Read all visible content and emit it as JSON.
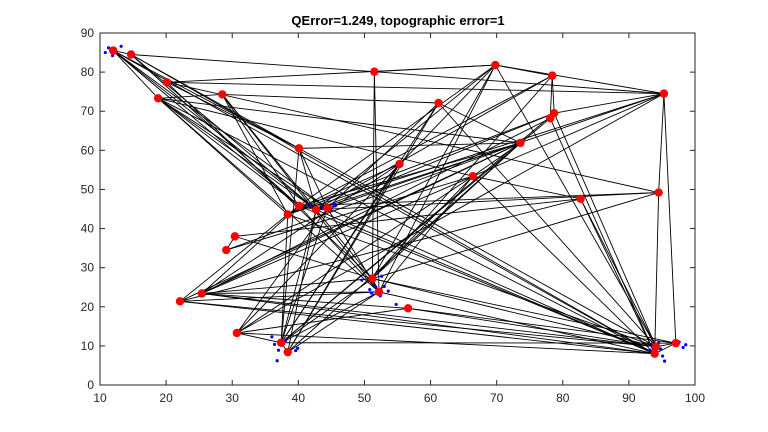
{
  "chart_data": {
    "type": "scatter",
    "title": "QError=1.249, topographic error=1",
    "xlabel": "",
    "ylabel": "",
    "xlim": [
      10,
      100
    ],
    "ylim": [
      0,
      90
    ],
    "xticks": [
      10,
      20,
      30,
      40,
      50,
      60,
      70,
      80,
      90,
      100
    ],
    "yticks": [
      0,
      10,
      20,
      30,
      40,
      50,
      60,
      70,
      80,
      90
    ],
    "grid": false,
    "colors": {
      "neuron": "#ff0000",
      "data": "#0000ff",
      "edge": "#000000",
      "axis": "#262626"
    },
    "neurons": [
      {
        "x": 12.0,
        "y": 85.5
      },
      {
        "x": 14.7,
        "y": 84.5
      },
      {
        "x": 20.1,
        "y": 77.4
      },
      {
        "x": 18.8,
        "y": 73.3
      },
      {
        "x": 28.5,
        "y": 74.3
      },
      {
        "x": 51.5,
        "y": 80.1
      },
      {
        "x": 69.8,
        "y": 81.8
      },
      {
        "x": 78.4,
        "y": 79.1
      },
      {
        "x": 61.2,
        "y": 72.1
      },
      {
        "x": 95.3,
        "y": 74.5
      },
      {
        "x": 78.7,
        "y": 69.5
      },
      {
        "x": 78.1,
        "y": 68.2
      },
      {
        "x": 73.6,
        "y": 61.9
      },
      {
        "x": 40.1,
        "y": 60.5
      },
      {
        "x": 55.3,
        "y": 56.5
      },
      {
        "x": 66.4,
        "y": 53.4
      },
      {
        "x": 94.5,
        "y": 49.2
      },
      {
        "x": 82.7,
        "y": 47.6
      },
      {
        "x": 40.1,
        "y": 45.8
      },
      {
        "x": 38.4,
        "y": 43.6
      },
      {
        "x": 42.7,
        "y": 44.8
      },
      {
        "x": 44.4,
        "y": 45.2
      },
      {
        "x": 30.4,
        "y": 38.0
      },
      {
        "x": 29.1,
        "y": 34.5
      },
      {
        "x": 51.2,
        "y": 27.2
      },
      {
        "x": 52.2,
        "y": 23.8
      },
      {
        "x": 25.4,
        "y": 23.4
      },
      {
        "x": 22.1,
        "y": 21.4
      },
      {
        "x": 56.6,
        "y": 19.6
      },
      {
        "x": 30.7,
        "y": 13.3
      },
      {
        "x": 37.4,
        "y": 10.8
      },
      {
        "x": 38.4,
        "y": 8.4
      },
      {
        "x": 94.1,
        "y": 9.8
      },
      {
        "x": 93.9,
        "y": 8.0
      },
      {
        "x": 97.1,
        "y": 10.7
      }
    ],
    "edges": [
      [
        0,
        1
      ],
      [
        0,
        3
      ],
      [
        0,
        13
      ],
      [
        0,
        18
      ],
      [
        0,
        20
      ],
      [
        0,
        21
      ],
      [
        0,
        33
      ],
      [
        1,
        5
      ],
      [
        1,
        13
      ],
      [
        1,
        18
      ],
      [
        1,
        20
      ],
      [
        1,
        33
      ],
      [
        2,
        6
      ],
      [
        2,
        9
      ],
      [
        2,
        13
      ],
      [
        2,
        16
      ],
      [
        2,
        24
      ],
      [
        3,
        4
      ],
      [
        3,
        12
      ],
      [
        3,
        15
      ],
      [
        3,
        18
      ],
      [
        3,
        19
      ],
      [
        3,
        20
      ],
      [
        3,
        21
      ],
      [
        3,
        25
      ],
      [
        3,
        33
      ],
      [
        4,
        8
      ],
      [
        4,
        18
      ],
      [
        4,
        19
      ],
      [
        4,
        20
      ],
      [
        4,
        25
      ],
      [
        5,
        6
      ],
      [
        5,
        9
      ],
      [
        5,
        24
      ],
      [
        5,
        25
      ],
      [
        6,
        7
      ],
      [
        6,
        9
      ],
      [
        6,
        18
      ],
      [
        6,
        20
      ],
      [
        6,
        24
      ],
      [
        6,
        25
      ],
      [
        6,
        29
      ],
      [
        6,
        32
      ],
      [
        7,
        10
      ],
      [
        7,
        11
      ],
      [
        7,
        19
      ],
      [
        7,
        20
      ],
      [
        7,
        24
      ],
      [
        8,
        12
      ],
      [
        8,
        21
      ],
      [
        8,
        30
      ],
      [
        8,
        31
      ],
      [
        8,
        32
      ],
      [
        9,
        10
      ],
      [
        9,
        16
      ],
      [
        9,
        19
      ],
      [
        9,
        21
      ],
      [
        9,
        26
      ],
      [
        9,
        29
      ],
      [
        9,
        34
      ],
      [
        10,
        19
      ],
      [
        10,
        20
      ],
      [
        10,
        30
      ],
      [
        10,
        32
      ],
      [
        11,
        26
      ],
      [
        11,
        30
      ],
      [
        11,
        33
      ],
      [
        12,
        13
      ],
      [
        12,
        15
      ],
      [
        12,
        18
      ],
      [
        12,
        20
      ],
      [
        12,
        23
      ],
      [
        12,
        24
      ],
      [
        12,
        26
      ],
      [
        12,
        27
      ],
      [
        12,
        31
      ],
      [
        13,
        20
      ],
      [
        13,
        21
      ],
      [
        13,
        30
      ],
      [
        13,
        32
      ],
      [
        14,
        19
      ],
      [
        14,
        26
      ],
      [
        14,
        30
      ],
      [
        14,
        31
      ],
      [
        15,
        17
      ],
      [
        15,
        23
      ],
      [
        15,
        24
      ],
      [
        15,
        25
      ],
      [
        15,
        29
      ],
      [
        15,
        33
      ],
      [
        16,
        18
      ],
      [
        16,
        20
      ],
      [
        16,
        24
      ],
      [
        16,
        33
      ],
      [
        17,
        22
      ],
      [
        17,
        27
      ],
      [
        17,
        32
      ],
      [
        17,
        33
      ],
      [
        18,
        19
      ],
      [
        18,
        20
      ],
      [
        18,
        25
      ],
      [
        18,
        26
      ],
      [
        18,
        33
      ],
      [
        19,
        27
      ],
      [
        19,
        30
      ],
      [
        19,
        32
      ],
      [
        20,
        21
      ],
      [
        20,
        24
      ],
      [
        20,
        30
      ],
      [
        20,
        31
      ],
      [
        20,
        33
      ],
      [
        21,
        25
      ],
      [
        21,
        29
      ],
      [
        21,
        30
      ],
      [
        21,
        33
      ],
      [
        22,
        23
      ],
      [
        22,
        24
      ],
      [
        24,
        25
      ],
      [
        24,
        26
      ],
      [
        24,
        30
      ],
      [
        24,
        32
      ],
      [
        24,
        34
      ],
      [
        25,
        26
      ],
      [
        25,
        27
      ],
      [
        25,
        30
      ],
      [
        25,
        31
      ],
      [
        25,
        33
      ],
      [
        26,
        28
      ],
      [
        26,
        32
      ],
      [
        26,
        33
      ],
      [
        27,
        32
      ],
      [
        27,
        33
      ],
      [
        28,
        29
      ],
      [
        28,
        32
      ],
      [
        28,
        34
      ],
      [
        29,
        30
      ],
      [
        29,
        33
      ],
      [
        30,
        31
      ],
      [
        30,
        34
      ],
      [
        32,
        33
      ],
      [
        32,
        34
      ],
      [
        33,
        34
      ]
    ],
    "data_points": [
      {
        "x": 10.8,
        "y": 85.0
      },
      {
        "x": 11.3,
        "y": 86.2
      },
      {
        "x": 13.2,
        "y": 86.6
      },
      {
        "x": 11.9,
        "y": 84.2
      },
      {
        "x": 42.4,
        "y": 44.8
      },
      {
        "x": 43.8,
        "y": 45.3
      },
      {
        "x": 45.6,
        "y": 45.8
      },
      {
        "x": 44.9,
        "y": 44.5
      },
      {
        "x": 41.8,
        "y": 45.6
      },
      {
        "x": 45.3,
        "y": 46.2
      },
      {
        "x": 49.6,
        "y": 26.8
      },
      {
        "x": 50.8,
        "y": 24.4
      },
      {
        "x": 51.7,
        "y": 25.1
      },
      {
        "x": 52.6,
        "y": 27.8
      },
      {
        "x": 53.0,
        "y": 25.2
      },
      {
        "x": 53.6,
        "y": 24.0
      },
      {
        "x": 51.1,
        "y": 23.5
      },
      {
        "x": 52.4,
        "y": 22.8
      },
      {
        "x": 54.8,
        "y": 20.6
      },
      {
        "x": 36.0,
        "y": 12.3
      },
      {
        "x": 36.4,
        "y": 10.4
      },
      {
        "x": 36.8,
        "y": 6.2
      },
      {
        "x": 38.1,
        "y": 11.4
      },
      {
        "x": 39.6,
        "y": 8.8
      },
      {
        "x": 39.9,
        "y": 9.4
      },
      {
        "x": 37.0,
        "y": 8.9
      },
      {
        "x": 93.2,
        "y": 8.9
      },
      {
        "x": 93.7,
        "y": 10.2
      },
      {
        "x": 94.8,
        "y": 9.2
      },
      {
        "x": 95.1,
        "y": 7.4
      },
      {
        "x": 95.4,
        "y": 6.1
      },
      {
        "x": 97.6,
        "y": 11.0
      },
      {
        "x": 98.2,
        "y": 9.6
      },
      {
        "x": 98.6,
        "y": 10.3
      },
      {
        "x": 94.5,
        "y": 10.8
      }
    ]
  }
}
